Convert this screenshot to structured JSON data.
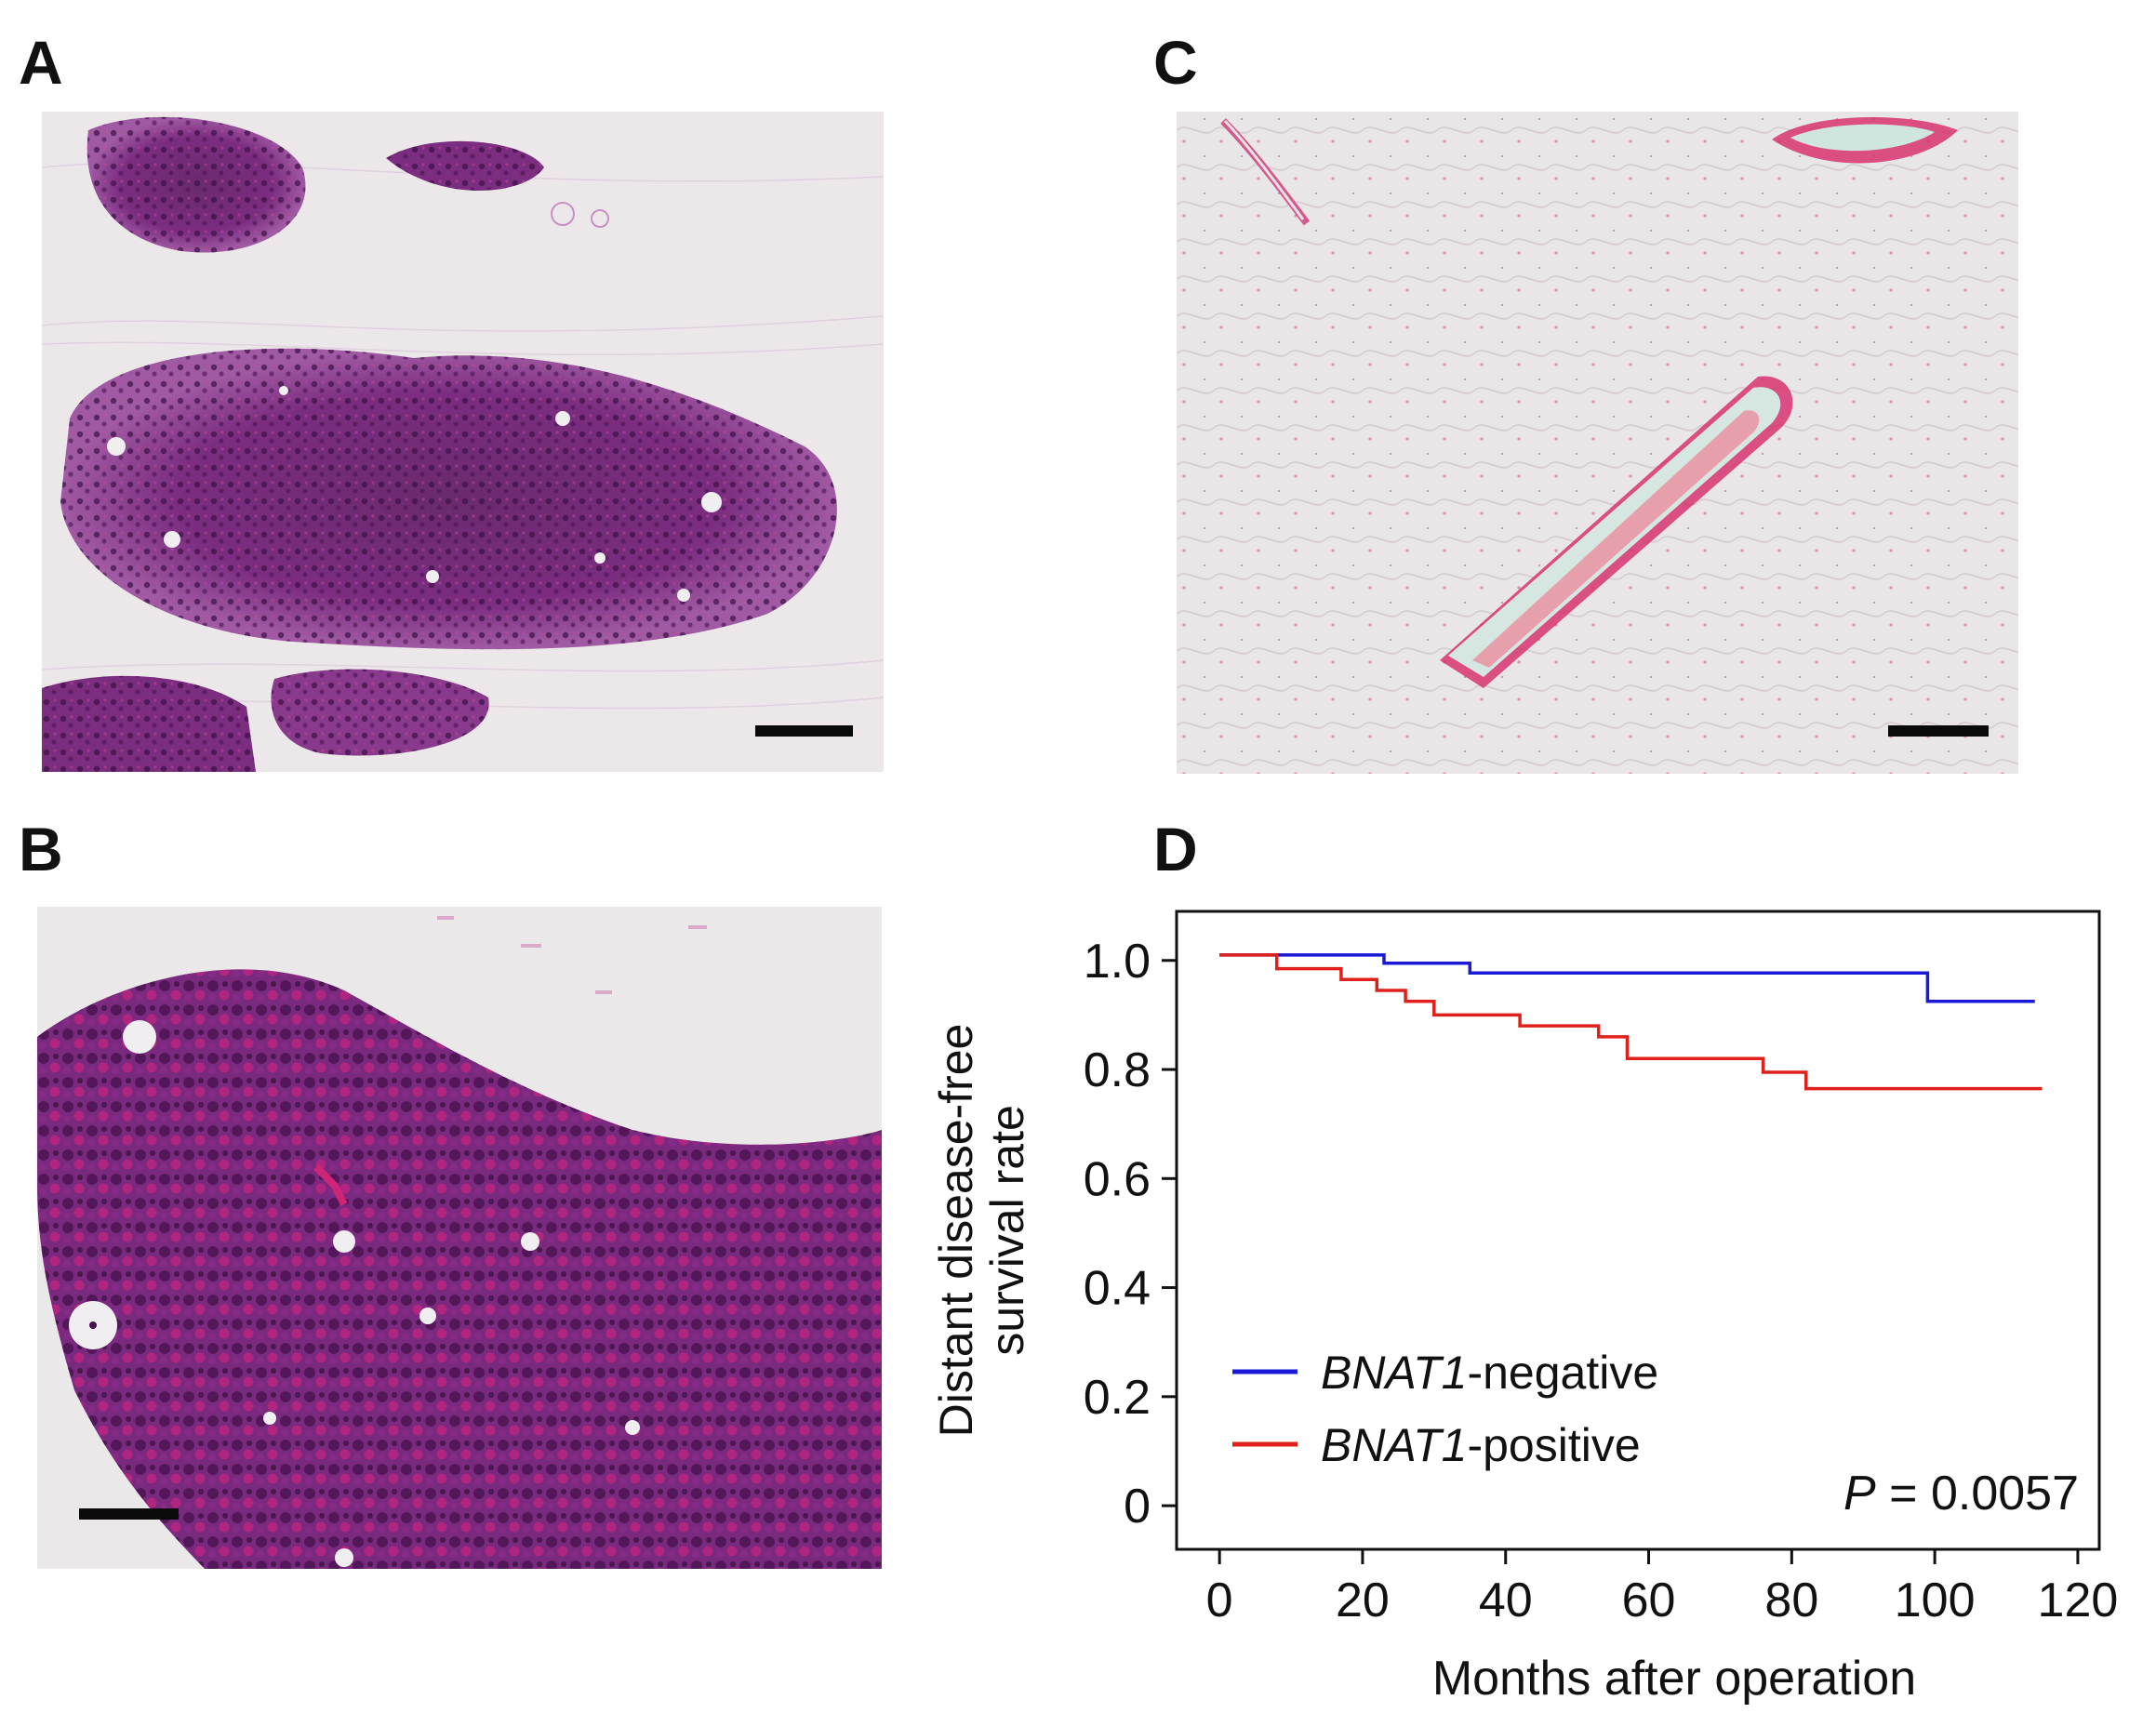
{
  "panels": {
    "a_label": "A",
    "b_label": "B",
    "c_label": "C",
    "d_label": "D"
  },
  "chart_data": {
    "type": "line",
    "title": "",
    "xlabel": "Months after operation",
    "ylabel_line1": "Distant disease-free",
    "ylabel_line2": "survival rate",
    "xlim": [
      -6,
      123
    ],
    "ylim": [
      -0.08,
      1.09
    ],
    "xticks": [
      0,
      20,
      40,
      60,
      80,
      100,
      120
    ],
    "yticks": [
      0,
      0.2,
      0.4,
      0.6,
      0.8,
      1.0
    ],
    "ytick_labels": [
      "0",
      "0.2",
      "0.4",
      "0.6",
      "0.8",
      "1.0"
    ],
    "grid": false,
    "legend_position": "lower-left",
    "series": [
      {
        "name_italic": "BNAT1",
        "name_rest": "-negative",
        "color": "#1a1ad6",
        "x": [
          0,
          23,
          23,
          35,
          35,
          99,
          99,
          114
        ],
        "y": [
          1.01,
          1.01,
          0.995,
          0.995,
          0.977,
          0.977,
          0.925,
          0.925
        ]
      },
      {
        "name_italic": "BNAT1",
        "name_rest": "-positive",
        "color": "#e0201b",
        "x": [
          0,
          8,
          8,
          17,
          17,
          22,
          22,
          26,
          26,
          30,
          30,
          42,
          42,
          53,
          53,
          57,
          57,
          76,
          76,
          82,
          82,
          115
        ],
        "y": [
          1.01,
          1.01,
          0.985,
          0.985,
          0.965,
          0.965,
          0.945,
          0.945,
          0.925,
          0.925,
          0.9,
          0.9,
          0.88,
          0.88,
          0.86,
          0.86,
          0.82,
          0.82,
          0.795,
          0.795,
          0.765,
          0.765
        ]
      }
    ],
    "annotation_italic": "P",
    "annotation_rest": " = 0.0057"
  },
  "colors": {
    "he_purple_dark": "#5a1a5e",
    "he_purple": "#8a3a8c",
    "he_pink": "#d2307a",
    "stroma": "#eae6e8",
    "background_light": "#f0eeef"
  }
}
